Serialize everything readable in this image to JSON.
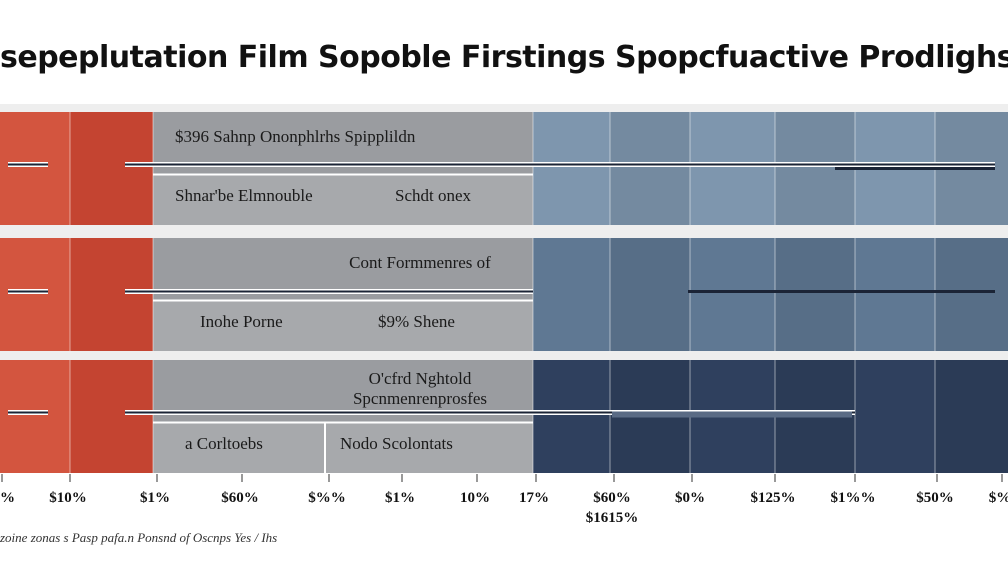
{
  "chart_data": {
    "type": "table",
    "title": "sepeplutation Film Sopoble Firstings Spopcfuactive Prodlighs",
    "footnote": "zoine zonas s Pasp pafa.n Ponsnd of Oscnps Yes / Ihs",
    "grid": true,
    "colors": {
      "red_bar": "#d3553f",
      "red_bar_dark": "#c44431",
      "gray_block": "#9a9ca0",
      "gray_block_light": "#a7a9ac",
      "blue_light": "#7e96ae",
      "blue_mid": "#5f7893",
      "blue_dark": "#2f405e",
      "separator": "#eeeeee",
      "line": "#1b2436"
    },
    "rows": [
      {
        "labels_top": [
          "$396 Sahnp Ononphlrhs Spipplildn"
        ],
        "labels_bottom": [
          "Shnar'be Elmnouble",
          "Schdt onex"
        ],
        "blue_shade": "light"
      },
      {
        "labels_top": [
          "Cont Formmenres of"
        ],
        "labels_bottom": [
          "Inohe Porne",
          "$9% Shene"
        ],
        "blue_shade": "mid"
      },
      {
        "labels_top": [
          "O'cfrd Nghtold",
          "Spcnmenrenprosfes"
        ],
        "labels_bottom": [
          "a Corltoebs",
          "Nodo Scolontats"
        ],
        "blue_shade": "dark"
      }
    ],
    "x_ticks": [
      "%",
      "$10%",
      "$1%",
      "$60%",
      "$%%",
      "$1%",
      "10%",
      "17%",
      "$60%",
      "$0%",
      "$125%",
      "$1%%",
      "$50%",
      "$%"
    ],
    "x_tick_extra": "$1615%"
  }
}
